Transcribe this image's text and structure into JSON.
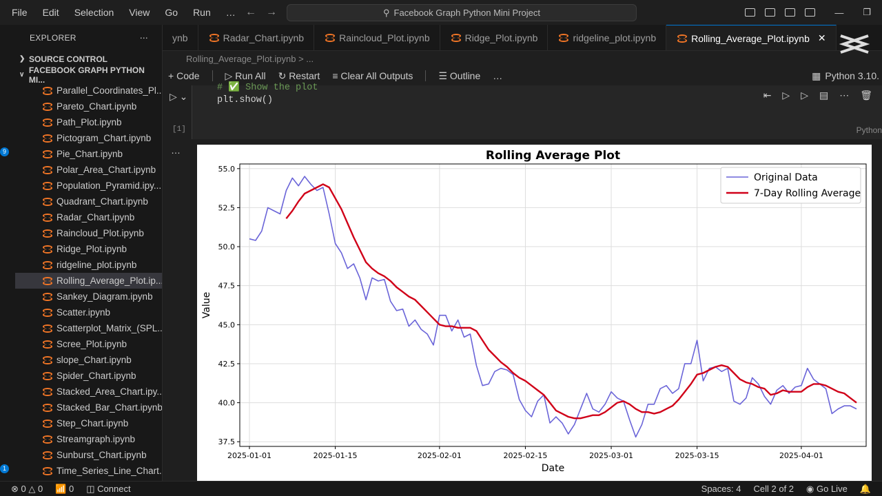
{
  "menu": [
    "File",
    "Edit",
    "Selection",
    "View",
    "Go",
    "Run",
    "…"
  ],
  "search": {
    "text": "Facebook Graph Python Mini Project"
  },
  "sidebar": {
    "title": "EXPLORER",
    "source_control": "SOURCE CONTROL",
    "project": "FACEBOOK GRAPH PYTHON MI...",
    "files": [
      "Parallel_Coordinates_Pl...",
      "Pareto_Chart.ipynb",
      "Path_Plot.ipynb",
      "Pictogram_Chart.ipynb",
      "Pie_Chart.ipynb",
      "Polar_Area_Chart.ipynb",
      "Population_Pyramid.ipy...",
      "Quadrant_Chart.ipynb",
      "Radar_Chart.ipynb",
      "Raincloud_Plot.ipynb",
      "Ridge_Plot.ipynb",
      "ridgeline_plot.ipynb",
      "Rolling_Average_Plot.ip...",
      "Sankey_Diagram.ipynb",
      "Scatter.ipynb",
      "Scatterplot_Matrix_(SPL...",
      "Scree_Plot.ipynb",
      "slope_Chart.ipynb",
      "Spider_Chart.ipynb",
      "Stacked_Area_Chart.ipy...",
      "Stacked_Bar_Chart.ipynb",
      "Step_Chart.ipynb",
      "Streamgraph.ipynb",
      "Sunburst_Chart.ipynb",
      "Time_Series_Line_Chart...."
    ],
    "selected_index": 12,
    "badges": [
      "9",
      "1"
    ]
  },
  "tabs": [
    "ynb",
    "Radar_Chart.ipynb",
    "Raincloud_Plot.ipynb",
    "Ridge_Plot.ipynb",
    "ridgeline_plot.ipynb",
    "Rolling_Average_Plot.ipynb"
  ],
  "active_tab": 5,
  "breadcrumb": "Rolling_Average_Plot.ipynb > ...",
  "toolbar": {
    "code": "Code",
    "run_all": "Run All",
    "restart": "Restart",
    "clear": "Clear All Outputs",
    "outline": "Outline",
    "more": "…",
    "kernel": "Python 3.10."
  },
  "cell": {
    "comment": "# ✅ Show the plot",
    "code": "plt.show()",
    "exec": "[1]",
    "lang": "Python",
    "out_more": "…"
  },
  "status": {
    "errors": "0",
    "warnings": "0",
    "ports": "0",
    "connect": "Connect",
    "spaces": "Spaces: 4",
    "cell": "Cell 2 of 2",
    "golive": "Go Live"
  },
  "colors": {
    "accent": "#0078d4",
    "original": "#6a64d8",
    "rolling": "#d00018",
    "notebook": "#f37626"
  },
  "chart_data": {
    "type": "line",
    "title": "Rolling Average Plot",
    "xlabel": "Date",
    "ylabel": "Value",
    "ylim": [
      37.2,
      55.3
    ],
    "yticks": [
      37.5,
      40.0,
      42.5,
      45.0,
      47.5,
      50.0,
      52.5,
      55.0
    ],
    "xticks": [
      "2025-01-01",
      "2025-01-15",
      "2025-02-01",
      "2025-02-15",
      "2025-03-01",
      "2025-03-15",
      "2025-04-01"
    ],
    "x_start": "2025-01-01",
    "grid": true,
    "legend": "top-right",
    "series": [
      {
        "name": "Original Data",
        "values": [
          50.5,
          50.4,
          51.0,
          52.5,
          52.3,
          52.1,
          53.6,
          54.4,
          53.9,
          54.5,
          54.0,
          53.6,
          53.8,
          52.1,
          50.2,
          49.6,
          48.6,
          48.9,
          48.0,
          46.6,
          48.0,
          47.8,
          47.9,
          46.5,
          45.9,
          46.0,
          44.9,
          45.3,
          44.7,
          44.4,
          43.7,
          45.6,
          45.6,
          44.6,
          45.3,
          44.2,
          44.4,
          42.4,
          41.1,
          41.2,
          42.0,
          42.2,
          42.1,
          41.8,
          40.2,
          39.5,
          39.1,
          40.1,
          40.5,
          38.7,
          39.1,
          38.7,
          38.0,
          38.6,
          39.6,
          40.6,
          39.6,
          39.4,
          39.9,
          40.7,
          40.3,
          40.1,
          38.9,
          37.8,
          38.6,
          39.9,
          39.9,
          40.9,
          41.1,
          40.6,
          40.9,
          42.5,
          42.5,
          44.0,
          41.4,
          42.2,
          42.3,
          42.0,
          42.2,
          40.1,
          39.9,
          40.3,
          41.6,
          41.2,
          40.4,
          39.9,
          40.8,
          41.1,
          40.6,
          41.0,
          41.1,
          42.2,
          41.5,
          41.2,
          40.9,
          39.3,
          39.6,
          39.8,
          39.8,
          39.6
        ]
      },
      {
        "name": "7-Day Rolling Average",
        "values": [
          null,
          null,
          null,
          null,
          null,
          null,
          51.8,
          52.3,
          52.9,
          53.4,
          53.6,
          53.8,
          54.0,
          53.8,
          53.1,
          52.4,
          51.5,
          50.6,
          49.8,
          49.0,
          48.6,
          48.3,
          48.1,
          47.8,
          47.4,
          47.1,
          46.8,
          46.6,
          46.2,
          45.8,
          45.4,
          45.0,
          44.9,
          44.9,
          44.8,
          44.8,
          44.8,
          44.6,
          44.0,
          43.4,
          43.0,
          42.6,
          42.3,
          41.9,
          41.6,
          41.4,
          41.1,
          40.8,
          40.5,
          40.0,
          39.5,
          39.3,
          39.1,
          39.0,
          39.0,
          39.1,
          39.2,
          39.2,
          39.4,
          39.7,
          40.0,
          40.1,
          39.9,
          39.6,
          39.4,
          39.4,
          39.3,
          39.4,
          39.6,
          39.8,
          40.2,
          40.7,
          41.2,
          41.8,
          41.9,
          42.1,
          42.3,
          42.4,
          42.3,
          41.9,
          41.5,
          41.3,
          41.2,
          41.0,
          40.9,
          40.5,
          40.6,
          40.8,
          40.7,
          40.7,
          40.7,
          41.0,
          41.2,
          41.2,
          41.1,
          40.9,
          40.7,
          40.6,
          40.3,
          40.0
        ]
      }
    ]
  }
}
